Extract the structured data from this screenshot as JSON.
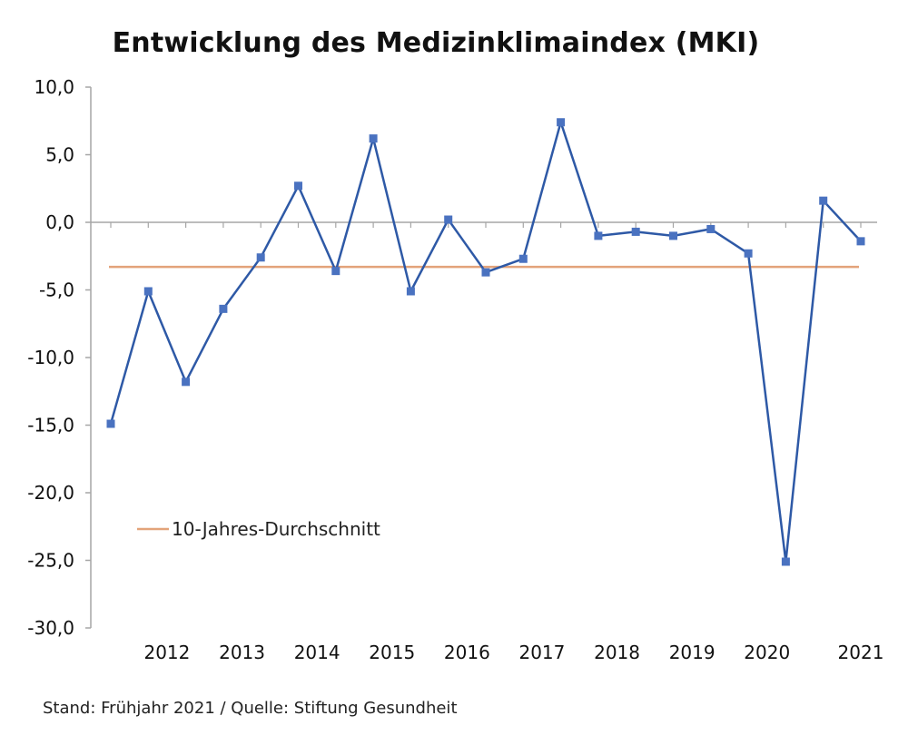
{
  "title": "Entwicklung des Medizinklimaindex (MKI)",
  "source": "Stand: Frühjahr 2021 / Quelle: Stiftung Gesundheit",
  "chart_data": {
    "type": "line",
    "title": "Entwicklung des Medizinklimaindex (MKI)",
    "ylim": [
      -30,
      10
    ],
    "y_ticks": [
      "10,0",
      "5,0",
      "0,0",
      "-5,0",
      "-10,0",
      "-15,0",
      "-20,0",
      "-25,0",
      "-30,0"
    ],
    "y_tick_values": [
      10,
      5,
      0,
      -5,
      -10,
      -15,
      -20,
      -25,
      -30
    ],
    "year_labels": [
      "2012",
      "2013",
      "2014",
      "2015",
      "2016",
      "2017",
      "2018",
      "2019",
      "2020",
      "2021"
    ],
    "year_label_indices": [
      1.5,
      3.5,
      5.5,
      7.5,
      9.5,
      11.5,
      13.5,
      15.5,
      17.5,
      20
    ],
    "grid": false,
    "legend_position": "bottom-left",
    "series": [
      {
        "name": "",
        "color": "#2e59a6",
        "marker_color": "#4a72c0",
        "values": [
          -14.9,
          -5.1,
          -11.8,
          -6.4,
          -2.6,
          2.7,
          -3.6,
          6.2,
          -5.1,
          0.2,
          -3.7,
          -2.7,
          7.4,
          -1.0,
          -0.7,
          -1.0,
          -0.5,
          -2.3,
          -25.1,
          1.6,
          -1.4
        ]
      }
    ],
    "reference_line": {
      "name": "10-Jahres-Durchschnitt",
      "value": -3.3,
      "color": "#e3a37a"
    }
  }
}
